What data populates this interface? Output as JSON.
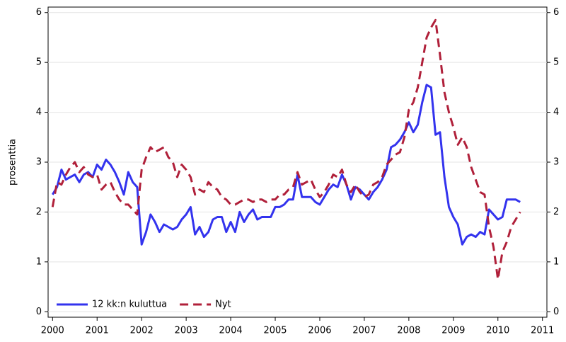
{
  "chart_data": {
    "type": "line",
    "y_label": "prosenttia",
    "x": [
      2000.0,
      2000.1,
      2000.2,
      2000.3,
      2000.4,
      2000.5,
      2000.6,
      2000.7,
      2000.8,
      2000.9,
      2001.0,
      2001.1,
      2001.2,
      2001.3,
      2001.4,
      2001.5,
      2001.6,
      2001.7,
      2001.8,
      2001.9,
      2002.0,
      2002.1,
      2002.2,
      2002.3,
      2002.4,
      2002.5,
      2002.6,
      2002.7,
      2002.8,
      2002.9,
      2003.0,
      2003.1,
      2003.2,
      2003.3,
      2003.4,
      2003.5,
      2003.6,
      2003.7,
      2003.8,
      2003.9,
      2004.0,
      2004.1,
      2004.2,
      2004.3,
      2004.4,
      2004.5,
      2004.6,
      2004.7,
      2004.8,
      2004.9,
      2005.0,
      2005.1,
      2005.2,
      2005.3,
      2005.4,
      2005.5,
      2005.6,
      2005.7,
      2005.8,
      2005.9,
      2006.0,
      2006.1,
      2006.2,
      2006.3,
      2006.4,
      2006.5,
      2006.6,
      2006.7,
      2006.8,
      2006.9,
      2007.0,
      2007.1,
      2007.2,
      2007.3,
      2007.4,
      2007.5,
      2007.6,
      2007.7,
      2007.8,
      2007.9,
      2008.0,
      2008.1,
      2008.2,
      2008.3,
      2008.4,
      2008.5,
      2008.6,
      2008.7,
      2008.8,
      2008.9,
      2009.0,
      2009.1,
      2009.2,
      2009.3,
      2009.4,
      2009.5,
      2009.6,
      2009.7,
      2009.8,
      2009.9,
      2010.0,
      2010.1,
      2010.2,
      2010.3,
      2010.4,
      2010.5
    ],
    "series": [
      {
        "name": "12 kk:n kuluttua",
        "color": "#3333ee",
        "dash": "solid",
        "values": [
          2.35,
          2.5,
          2.85,
          2.65,
          2.7,
          2.75,
          2.6,
          2.75,
          2.8,
          2.7,
          2.95,
          2.85,
          3.05,
          2.95,
          2.8,
          2.6,
          2.35,
          2.8,
          2.6,
          2.5,
          1.35,
          1.6,
          1.95,
          1.8,
          1.6,
          1.75,
          1.7,
          1.65,
          1.7,
          1.85,
          1.95,
          2.1,
          1.55,
          1.7,
          1.5,
          1.6,
          1.85,
          1.9,
          1.9,
          1.6,
          1.8,
          1.6,
          2.0,
          1.8,
          1.95,
          2.05,
          1.85,
          1.9,
          1.9,
          1.9,
          2.1,
          2.1,
          2.15,
          2.25,
          2.25,
          2.75,
          2.3,
          2.3,
          2.3,
          2.2,
          2.15,
          2.3,
          2.45,
          2.55,
          2.5,
          2.75,
          2.55,
          2.25,
          2.5,
          2.45,
          2.35,
          2.25,
          2.4,
          2.5,
          2.65,
          2.85,
          3.3,
          3.35,
          3.45,
          3.6,
          3.8,
          3.6,
          3.75,
          4.2,
          4.55,
          4.5,
          3.55,
          3.6,
          2.7,
          2.1,
          1.9,
          1.75,
          1.35,
          1.5,
          1.55,
          1.5,
          1.6,
          1.55,
          2.05,
          1.95,
          1.85,
          1.9,
          2.25,
          2.25,
          2.25,
          2.2
        ]
      },
      {
        "name": "Nyt",
        "color": "#b0203a",
        "dash": "dashed",
        "values": [
          2.1,
          2.6,
          2.55,
          2.75,
          2.9,
          3.0,
          2.8,
          2.9,
          2.75,
          2.7,
          2.75,
          2.45,
          2.55,
          2.6,
          2.4,
          2.25,
          2.15,
          2.15,
          2.05,
          1.95,
          2.85,
          3.1,
          3.3,
          3.2,
          3.25,
          3.3,
          3.1,
          3.0,
          2.7,
          2.95,
          2.85,
          2.7,
          2.35,
          2.45,
          2.4,
          2.6,
          2.5,
          2.45,
          2.3,
          2.25,
          2.15,
          2.15,
          2.2,
          2.25,
          2.25,
          2.2,
          2.25,
          2.25,
          2.2,
          2.25,
          2.25,
          2.35,
          2.35,
          2.45,
          2.5,
          2.8,
          2.55,
          2.6,
          2.65,
          2.45,
          2.3,
          2.4,
          2.55,
          2.75,
          2.7,
          2.85,
          2.55,
          2.4,
          2.55,
          2.4,
          2.3,
          2.35,
          2.55,
          2.6,
          2.7,
          2.95,
          3.05,
          3.15,
          3.2,
          3.5,
          4.05,
          4.2,
          4.5,
          5.0,
          5.5,
          5.7,
          5.85,
          5.15,
          4.4,
          4.0,
          3.7,
          3.35,
          3.5,
          3.3,
          2.9,
          2.65,
          2.4,
          2.35,
          1.7,
          1.3,
          0.65,
          1.2,
          1.4,
          1.7,
          1.85,
          2.0
        ]
      }
    ],
    "xlim": [
      1999.9,
      2011.1
    ],
    "xticks": [
      2000,
      2001,
      2002,
      2003,
      2004,
      2005,
      2006,
      2007,
      2008,
      2009,
      2010,
      2011
    ],
    "ylim": [
      -0.11,
      6.11
    ],
    "yticks": [
      0,
      1,
      2,
      3,
      4,
      5,
      6
    ],
    "y2lim": [
      -0.11,
      6.11
    ],
    "y2ticks": [
      0,
      1,
      2,
      3,
      4,
      5,
      6
    ],
    "grid": true,
    "legend": "lower left"
  }
}
